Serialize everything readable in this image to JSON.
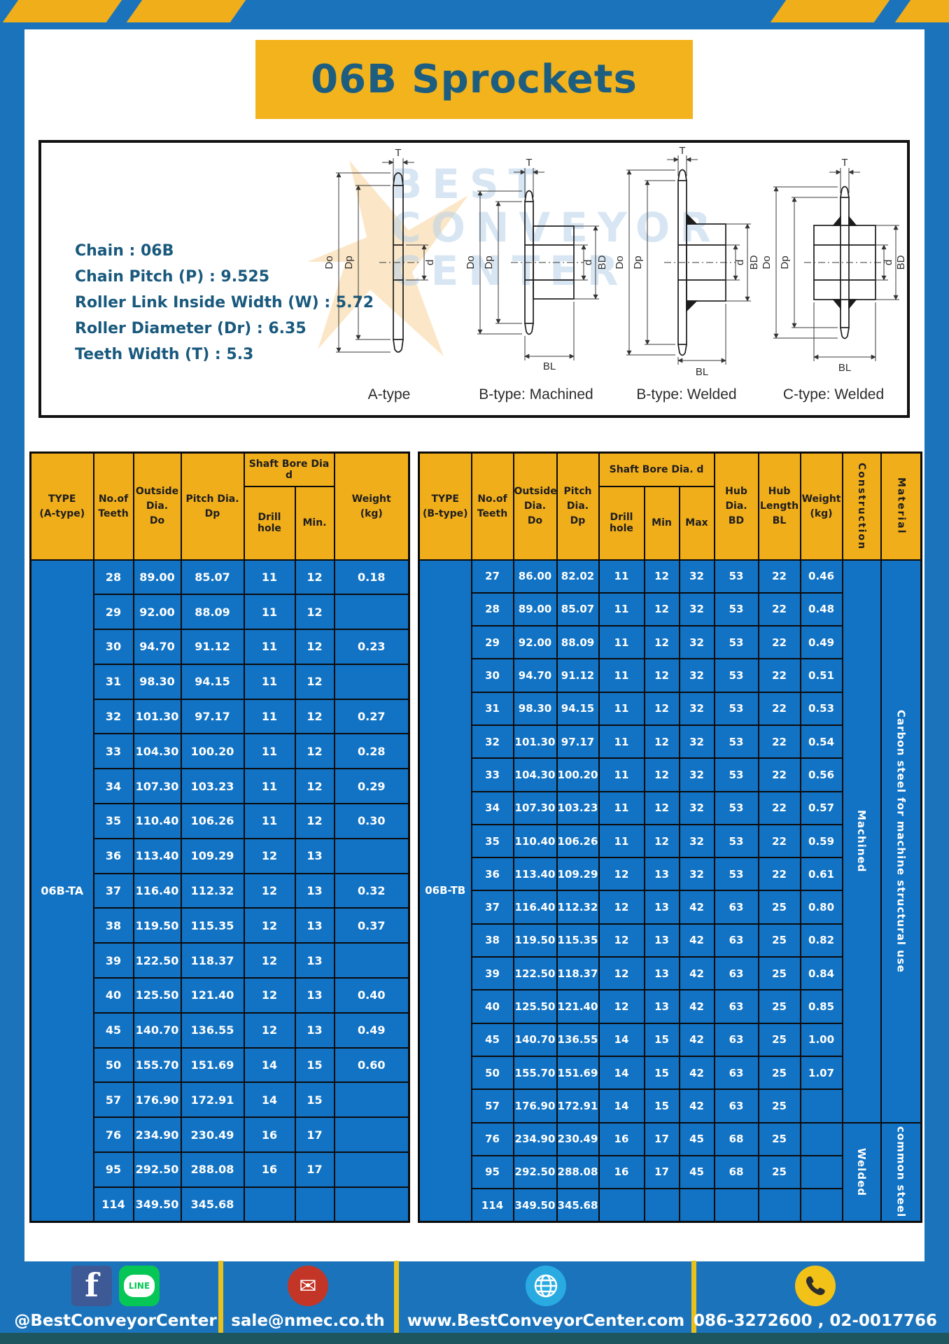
{
  "header": {
    "title": "06B Sprockets"
  },
  "specs": {
    "lines": [
      "Chain  : 06B",
      "Chain Pitch (P)  :  9.525",
      "Roller Link Inside Width (W)  :  5.72",
      "Roller Diameter (Dr)  : 6.35",
      "Teeth Width (T)  :  5.3"
    ]
  },
  "diagram": {
    "watermark_lines": [
      "BEST",
      "CONVEYOR",
      "CENTER"
    ],
    "type_labels": [
      "A-type",
      "B-type: Machined",
      "B-type: Welded",
      "C-type: Welded"
    ],
    "dims": {
      "t": "T",
      "do": "Do",
      "dp": "Dp",
      "d": "d",
      "bd": "BD",
      "bl": "BL"
    }
  },
  "table_a": {
    "type_label": "06B-TA",
    "headers": {
      "type_l1": "TYPE",
      "type_l2": "(A-type)",
      "teeth_l1": "No.of",
      "teeth_l2": "Teeth",
      "outside_l1": "Outside",
      "outside_l2": "Dia.",
      "outside_l3": "Do",
      "pitch_l1": "Pitch Dia.",
      "pitch_l2": "Dp",
      "shaft_group": "Shaft Bore Dia d",
      "drill": "Drill hole",
      "min": "Min.",
      "weight_l1": "Weight",
      "weight_l2": "(kg)"
    },
    "rows": [
      [
        "28",
        "89.00",
        "85.07",
        "11",
        "12",
        "0.18"
      ],
      [
        "29",
        "92.00",
        "88.09",
        "11",
        "12",
        ""
      ],
      [
        "30",
        "94.70",
        "91.12",
        "11",
        "12",
        "0.23"
      ],
      [
        "31",
        "98.30",
        "94.15",
        "11",
        "12",
        ""
      ],
      [
        "32",
        "101.30",
        "97.17",
        "11",
        "12",
        "0.27"
      ],
      [
        "33",
        "104.30",
        "100.20",
        "11",
        "12",
        "0.28"
      ],
      [
        "34",
        "107.30",
        "103.23",
        "11",
        "12",
        "0.29"
      ],
      [
        "35",
        "110.40",
        "106.26",
        "11",
        "12",
        "0.30"
      ],
      [
        "36",
        "113.40",
        "109.29",
        "12",
        "13",
        ""
      ],
      [
        "37",
        "116.40",
        "112.32",
        "12",
        "13",
        "0.32"
      ],
      [
        "38",
        "119.50",
        "115.35",
        "12",
        "13",
        "0.37"
      ],
      [
        "39",
        "122.50",
        "118.37",
        "12",
        "13",
        ""
      ],
      [
        "40",
        "125.50",
        "121.40",
        "12",
        "13",
        "0.40"
      ],
      [
        "45",
        "140.70",
        "136.55",
        "12",
        "13",
        "0.49"
      ],
      [
        "50",
        "155.70",
        "151.69",
        "14",
        "15",
        "0.60"
      ],
      [
        "57",
        "176.90",
        "172.91",
        "14",
        "15",
        ""
      ],
      [
        "76",
        "234.90",
        "230.49",
        "16",
        "17",
        ""
      ],
      [
        "95",
        "292.50",
        "288.08",
        "16",
        "17",
        ""
      ],
      [
        "114",
        "349.50",
        "345.68",
        "",
        "",
        ""
      ]
    ]
  },
  "table_b": {
    "type_label": "06B-TB",
    "headers": {
      "type_l1": "TYPE",
      "type_l2": "(B-type)",
      "teeth_l1": "No.of",
      "teeth_l2": "Teeth",
      "outside_l1": "Outside",
      "outside_l2": "Dia.",
      "outside_l3": "Do",
      "pitch_l1": "Pitch",
      "pitch_l2": "Dia.",
      "pitch_l3": "Dp",
      "shaft_group": "Shaft Bore Dia. d",
      "drill": "Drill hole",
      "min": "Min",
      "max": "Max",
      "hubdia_l1": "Hub",
      "hubdia_l2": "Dia.",
      "hubdia_l3": "BD",
      "hublen_l1": "Hub",
      "hublen_l2": "Length",
      "hublen_l3": "BL",
      "weight_l1": "Weight",
      "weight_l2": "(kg)",
      "construction": "Construction",
      "material": "Material"
    },
    "construction_groups": [
      {
        "label": "Machined",
        "span": 17,
        "start": 0
      },
      {
        "label": "Welded",
        "span": 3,
        "start": 17
      }
    ],
    "material_groups": [
      {
        "label": "Carbon steel for machine structural use",
        "span": 17
      },
      {
        "label": "common steel",
        "span": 3
      }
    ],
    "rows": [
      [
        "27",
        "86.00",
        "82.02",
        "11",
        "12",
        "32",
        "53",
        "22",
        "0.46"
      ],
      [
        "28",
        "89.00",
        "85.07",
        "11",
        "12",
        "32",
        "53",
        "22",
        "0.48"
      ],
      [
        "29",
        "92.00",
        "88.09",
        "11",
        "12",
        "32",
        "53",
        "22",
        "0.49"
      ],
      [
        "30",
        "94.70",
        "91.12",
        "11",
        "12",
        "32",
        "53",
        "22",
        "0.51"
      ],
      [
        "31",
        "98.30",
        "94.15",
        "11",
        "12",
        "32",
        "53",
        "22",
        "0.53"
      ],
      [
        "32",
        "101.30",
        "97.17",
        "11",
        "12",
        "32",
        "53",
        "22",
        "0.54"
      ],
      [
        "33",
        "104.30",
        "100.20",
        "11",
        "12",
        "32",
        "53",
        "22",
        "0.56"
      ],
      [
        "34",
        "107.30",
        "103.23",
        "11",
        "12",
        "32",
        "53",
        "22",
        "0.57"
      ],
      [
        "35",
        "110.40",
        "106.26",
        "11",
        "12",
        "32",
        "53",
        "22",
        "0.59"
      ],
      [
        "36",
        "113.40",
        "109.29",
        "12",
        "13",
        "32",
        "53",
        "22",
        "0.61"
      ],
      [
        "37",
        "116.40",
        "112.32",
        "12",
        "13",
        "42",
        "63",
        "25",
        "0.80"
      ],
      [
        "38",
        "119.50",
        "115.35",
        "12",
        "13",
        "42",
        "63",
        "25",
        "0.82"
      ],
      [
        "39",
        "122.50",
        "118.37",
        "12",
        "13",
        "42",
        "63",
        "25",
        "0.84"
      ],
      [
        "40",
        "125.50",
        "121.40",
        "12",
        "13",
        "42",
        "63",
        "25",
        "0.85"
      ],
      [
        "45",
        "140.70",
        "136.55",
        "14",
        "15",
        "42",
        "63",
        "25",
        "1.00"
      ],
      [
        "50",
        "155.70",
        "151.69",
        "14",
        "15",
        "42",
        "63",
        "25",
        "1.07"
      ],
      [
        "57",
        "176.90",
        "172.91",
        "14",
        "15",
        "42",
        "63",
        "25",
        ""
      ],
      [
        "76",
        "234.90",
        "230.49",
        "16",
        "17",
        "45",
        "68",
        "25",
        ""
      ],
      [
        "95",
        "292.50",
        "288.08",
        "16",
        "17",
        "45",
        "68",
        "25",
        ""
      ],
      [
        "114",
        "349.50",
        "345.68",
        "",
        "",
        "",
        "",
        "",
        ""
      ]
    ]
  },
  "footer": {
    "social_label": "@BestConveyorCenter",
    "email": "sale@nmec.co.th",
    "website": "www.BestConveyorCenter.com",
    "phone": "086-3272600 , 02-0017766",
    "line_icon_text": "LINE",
    "facebook_letter": "f"
  },
  "colors": {
    "brand_blue": "#1b74bb",
    "table_cell_blue": "#1273c4",
    "accent_yellow": "#f1ae1b",
    "title_text": "#1d5e80",
    "footer_divider_yellow": "#e8c11c"
  }
}
